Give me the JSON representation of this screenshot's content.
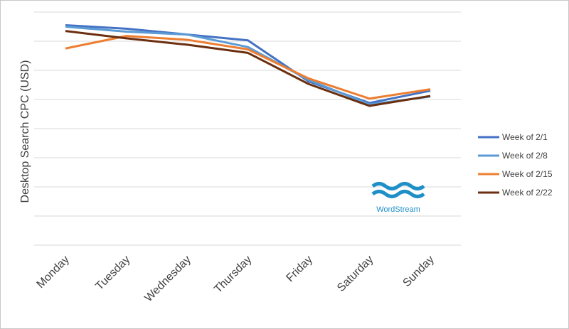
{
  "chart_data": {
    "type": "line",
    "ylabel": "Desktop Search CPC (USD)",
    "xlabel": "",
    "categories": [
      "Monday",
      "Tuesday",
      "Wednesday",
      "Thursday",
      "Friday",
      "Saturday",
      "Sunday"
    ],
    "ylim": [
      0,
      8
    ],
    "grid": true,
    "legend": "right",
    "series": [
      {
        "name": "Week of 2/1",
        "color": "#4472c4",
        "values": [
          7.55,
          7.43,
          7.23,
          7.03,
          5.62,
          4.88,
          5.3
        ]
      },
      {
        "name": "Week of 2/8",
        "color": "#5b9bd5",
        "values": [
          7.5,
          7.33,
          7.23,
          6.8,
          5.67,
          4.83,
          5.1
        ]
      },
      {
        "name": "Week of 2/15",
        "color": "#ed7d31",
        "values": [
          6.75,
          7.18,
          7.05,
          6.72,
          5.72,
          5.03,
          5.35
        ]
      },
      {
        "name": "Week of 2/22",
        "color": "#6b2f0f",
        "values": [
          7.35,
          7.1,
          6.88,
          6.6,
          5.53,
          4.78,
          5.12
        ]
      }
    ]
  },
  "logo": {
    "text": "WordStream",
    "color": "#1f8fc8"
  }
}
